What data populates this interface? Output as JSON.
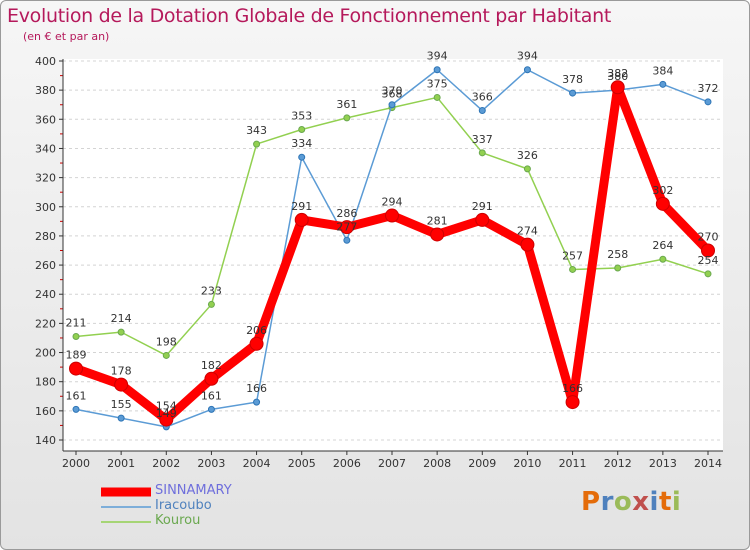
{
  "chart_data": {
    "type": "line",
    "title": "Evolution de la Dotation Globale de Fonctionnement par Habitant",
    "subtitle": "(en € et par an)",
    "categories": [
      "2000",
      "2001",
      "2002",
      "2003",
      "2004",
      "2005",
      "2006",
      "2007",
      "2008",
      "2009",
      "2010",
      "2011",
      "2012",
      "2013",
      "2014"
    ],
    "ylim": [
      140,
      400
    ],
    "yticks": [
      140,
      160,
      180,
      200,
      220,
      240,
      260,
      280,
      300,
      320,
      340,
      360,
      380,
      400
    ],
    "grid": "horizontal",
    "series": [
      {
        "name": "SINNAMARY",
        "color": "#ff0000",
        "values": [
          189,
          178,
          154,
          182,
          206,
          291,
          286,
          294,
          281,
          291,
          274,
          166,
          382,
          302,
          270
        ],
        "labels": [
          "189",
          "178",
          "154",
          "182",
          "206",
          "291",
          "286",
          "294",
          "281",
          "291",
          "274",
          "166",
          "382",
          "302",
          "270"
        ]
      },
      {
        "name": "Iracoubo",
        "color": "#5b9bd5",
        "values": [
          161,
          155,
          149,
          161,
          166,
          334,
          277,
          370,
          394,
          366,
          394,
          378,
          380,
          384,
          372
        ],
        "labels": [
          "161",
          "155",
          "149",
          "161",
          "166",
          "334",
          "277",
          "370",
          "394",
          "366",
          "394",
          "378",
          "380",
          "384",
          "372"
        ]
      },
      {
        "name": "Kourou",
        "color": "#92d050",
        "values": [
          211,
          214,
          198,
          233,
          343,
          353,
          361,
          368,
          375,
          337,
          326,
          257,
          258,
          264,
          254
        ],
        "labels": [
          "211",
          "214",
          "198",
          "233",
          "343",
          "353",
          "361",
          "368",
          "375",
          "337",
          "326",
          "257",
          "258",
          "264",
          "254"
        ]
      }
    ]
  },
  "logo": {
    "text": "Proxiti",
    "colors": [
      "#e46c0a",
      "#4f81bd",
      "#9bbb59",
      "#c0504d",
      "#4f81bd",
      "#e46c0a",
      "#9bbb59"
    ]
  }
}
